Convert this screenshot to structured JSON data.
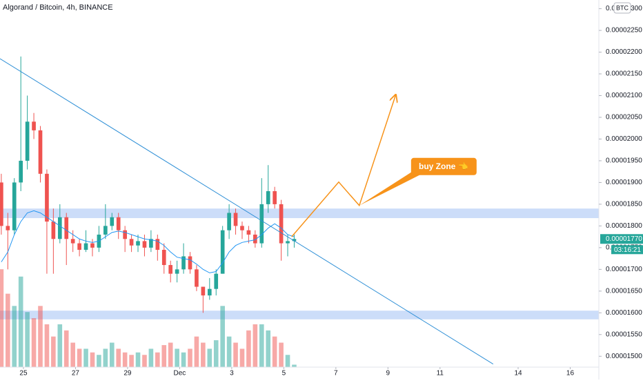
{
  "chart_data": {
    "type": "candlestick",
    "title": "Algorand / Bitcoin, 4h, BINANCE",
    "currency": "BTC",
    "up_color": "#26a69a",
    "down_color": "#ef5350",
    "ma_color": "#2196f3",
    "annotation_color": "#f7931a",
    "zone_color": "#bbd2f7",
    "x": [
      -0.85,
      -0.6,
      -0.35,
      -0.1,
      0.15,
      0.4,
      0.65,
      0.9,
      1.15,
      1.4,
      1.65,
      1.9,
      2.15,
      2.4,
      2.65,
      2.9,
      3.15,
      3.4,
      3.65,
      3.9,
      4.15,
      4.4,
      4.65,
      4.9,
      5.15,
      5.4,
      5.65,
      5.9,
      6.15,
      6.4,
      6.65,
      6.9,
      7.15,
      7.4,
      7.65,
      7.9,
      8.15,
      8.4,
      8.65,
      8.9,
      9.15,
      9.4,
      9.65,
      9.9,
      10.15,
      10.4
    ],
    "open": [
      1.9e-05,
      1.8e-05,
      1.79e-05,
      1.9e-05,
      1.95e-05,
      2.04e-05,
      2.02e-05,
      1.92e-05,
      1.81e-05,
      1.77e-05,
      1.82e-05,
      1.77e-05,
      1.76e-05,
      1.745e-05,
      1.76e-05,
      1.75e-05,
      1.78e-05,
      1.8e-05,
      1.82e-05,
      1.79e-05,
      1.77e-05,
      1.755e-05,
      1.765e-05,
      1.75e-05,
      1.77e-05,
      1.745e-05,
      1.71e-05,
      1.69e-05,
      1.7e-05,
      1.73e-05,
      1.7e-05,
      1.66e-05,
      1.64e-05,
      1.655e-05,
      1.69e-05,
      1.79e-05,
      1.83e-05,
      1.8e-05,
      1.79e-05,
      1.78e-05,
      1.76e-05,
      1.85e-05,
      1.88e-05,
      1.85e-05,
      1.76e-05,
      1.765e-05
    ],
    "high": [
      1.92e-05,
      1.83e-05,
      1.91e-05,
      2.19e-05,
      2.1e-05,
      2.06e-05,
      2.03e-05,
      1.93e-05,
      1.84e-05,
      1.85e-05,
      1.83e-05,
      1.79e-05,
      1.77e-05,
      1.79e-05,
      1.77e-05,
      1.8e-05,
      1.85e-05,
      1.83e-05,
      1.83e-05,
      1.8e-05,
      1.78e-05,
      1.78e-05,
      1.78e-05,
      1.79e-05,
      1.78e-05,
      1.76e-05,
      1.72e-05,
      1.72e-05,
      1.76e-05,
      1.74e-05,
      1.71e-05,
      1.66e-05,
      1.68e-05,
      1.7e-05,
      1.8e-05,
      1.85e-05,
      1.84e-05,
      1.81e-05,
      1.8e-05,
      1.79e-05,
      1.91e-05,
      1.94e-05,
      1.89e-05,
      1.86e-05,
      1.78e-05,
      1.78e-05
    ],
    "low": [
      1.78e-05,
      1.7e-05,
      1.78e-05,
      1.88e-05,
      1.93e-05,
      2e-05,
      1.9e-05,
      1.69e-05,
      1.69e-05,
      1.76e-05,
      1.71e-05,
      1.74e-05,
      1.73e-05,
      1.74e-05,
      1.73e-05,
      1.74e-05,
      1.77e-05,
      1.79e-05,
      1.77e-05,
      1.74e-05,
      1.74e-05,
      1.74e-05,
      1.73e-05,
      1.74e-05,
      1.72e-05,
      1.69e-05,
      1.67e-05,
      1.67e-05,
      1.69e-05,
      1.69e-05,
      1.65e-05,
      1.6e-05,
      1.63e-05,
      1.64e-05,
      1.69e-05,
      1.77e-05,
      1.78e-05,
      1.77e-05,
      1.76e-05,
      1.75e-05,
      1.75e-05,
      1.83e-05,
      1.84e-05,
      1.72e-05,
      1.73e-05,
      1.75e-05
    ],
    "close": [
      1.8e-05,
      1.79e-05,
      1.9e-05,
      1.95e-05,
      2.04e-05,
      2.02e-05,
      1.92e-05,
      1.81e-05,
      1.77e-05,
      1.82e-05,
      1.77e-05,
      1.76e-05,
      1.745e-05,
      1.76e-05,
      1.75e-05,
      1.78e-05,
      1.8e-05,
      1.82e-05,
      1.79e-05,
      1.77e-05,
      1.755e-05,
      1.765e-05,
      1.75e-05,
      1.77e-05,
      1.745e-05,
      1.71e-05,
      1.69e-05,
      1.7e-05,
      1.73e-05,
      1.7e-05,
      1.66e-05,
      1.64e-05,
      1.655e-05,
      1.69e-05,
      1.79e-05,
      1.83e-05,
      1.8e-05,
      1.79e-05,
      1.78e-05,
      1.76e-05,
      1.85e-05,
      1.88e-05,
      1.85e-05,
      1.76e-05,
      1.765e-05,
      1.77e-05
    ],
    "volume": [
      80,
      60,
      50,
      74,
      45,
      40,
      50,
      35,
      25,
      35,
      30,
      20,
      15,
      15,
      12,
      10,
      15,
      20,
      15,
      12,
      10,
      12,
      10,
      15,
      12,
      18,
      20,
      15,
      12,
      15,
      25,
      20,
      15,
      22,
      50,
      25,
      20,
      15,
      30,
      35,
      35,
      30,
      25,
      20,
      10,
      2
    ],
    "volume_lim": [
      0,
      300
    ],
    "ma": [
      1.717e-05,
      1.74e-05,
      1.78e-05,
      1.81e-05,
      1.83e-05,
      1.835e-05,
      1.83e-05,
      1.82e-05,
      1.81e-05,
      1.8e-05,
      1.79e-05,
      1.78e-05,
      1.77e-05,
      1.765e-05,
      1.762e-05,
      1.765e-05,
      1.775e-05,
      1.785e-05,
      1.788e-05,
      1.785e-05,
      1.78e-05,
      1.775e-05,
      1.77e-05,
      1.768e-05,
      1.765e-05,
      1.755e-05,
      1.74e-05,
      1.728e-05,
      1.725e-05,
      1.722e-05,
      1.712e-05,
      1.7e-05,
      1.692e-05,
      1.695e-05,
      1.715e-05,
      1.74e-05,
      1.755e-05,
      1.762e-05,
      1.765e-05,
      1.768e-05,
      1.78e-05,
      1.795e-05,
      1.805e-05,
      1.795e-05,
      1.78e-05,
      1.775e-05
    ],
    "zones": [
      {
        "low": 1.818e-05,
        "high": 1.84e-05
      },
      {
        "low": 1.585e-05,
        "high": 1.605e-05
      }
    ],
    "trendline": {
      "x": [
        -0.9,
        18.04
      ],
      "y": [
        2.185e-05,
        1.482e-05
      ]
    },
    "projection": {
      "x": [
        10.3,
        12.11,
        12.9,
        14.3
      ],
      "y": [
        1.775e-05,
        1.901e-05,
        1.847e-05,
        2.102e-05
      ]
    },
    "annotation": {
      "text": "buy Zone 👈",
      "x": 12.9,
      "y": 1.847e-05
    },
    "last_price": {
      "value": 1.77e-05,
      "label": "0.00001770"
    },
    "countdown": "03:16:21",
    "xlim": [
      -0.9,
      22.1
    ],
    "xticks": [
      {
        "value": 0,
        "label": "25"
      },
      {
        "value": 2,
        "label": "27"
      },
      {
        "value": 4,
        "label": "29"
      },
      {
        "value": 6,
        "label": "Dec"
      },
      {
        "value": 8,
        "label": "3"
      },
      {
        "value": 10,
        "label": "5"
      },
      {
        "value": 12,
        "label": "7"
      },
      {
        "value": 14,
        "label": "9"
      },
      {
        "value": 16,
        "label": "11"
      },
      {
        "value": 19,
        "label": "14"
      },
      {
        "value": 21,
        "label": "16"
      }
    ],
    "ylim": [
      1.475e-05,
      2.32e-05
    ],
    "yticks": [
      {
        "value": 1.5e-05,
        "label": "0.00001500"
      },
      {
        "value": 1.55e-05,
        "label": "0.00001550"
      },
      {
        "value": 1.6e-05,
        "label": "0.00001600"
      },
      {
        "value": 1.65e-05,
        "label": "0.00001650"
      },
      {
        "value": 1.7e-05,
        "label": "0.00001700"
      },
      {
        "value": 1.75e-05,
        "label": "0.00001750"
      },
      {
        "value": 1.8e-05,
        "label": "0.00001800"
      },
      {
        "value": 1.85e-05,
        "label": "0.00001850"
      },
      {
        "value": 1.9e-05,
        "label": "0.00001900"
      },
      {
        "value": 1.95e-05,
        "label": "0.00001950"
      },
      {
        "value": 2e-05,
        "label": "0.00002000"
      },
      {
        "value": 2.05e-05,
        "label": "0.00002050"
      },
      {
        "value": 2.1e-05,
        "label": "0.00002100"
      },
      {
        "value": 2.15e-05,
        "label": "0.00002150"
      },
      {
        "value": 2.2e-05,
        "label": "0.00002200"
      },
      {
        "value": 2.25e-05,
        "label": "0.00002250"
      },
      {
        "value": 2.3e-05,
        "label": "0.00002300"
      }
    ]
  }
}
